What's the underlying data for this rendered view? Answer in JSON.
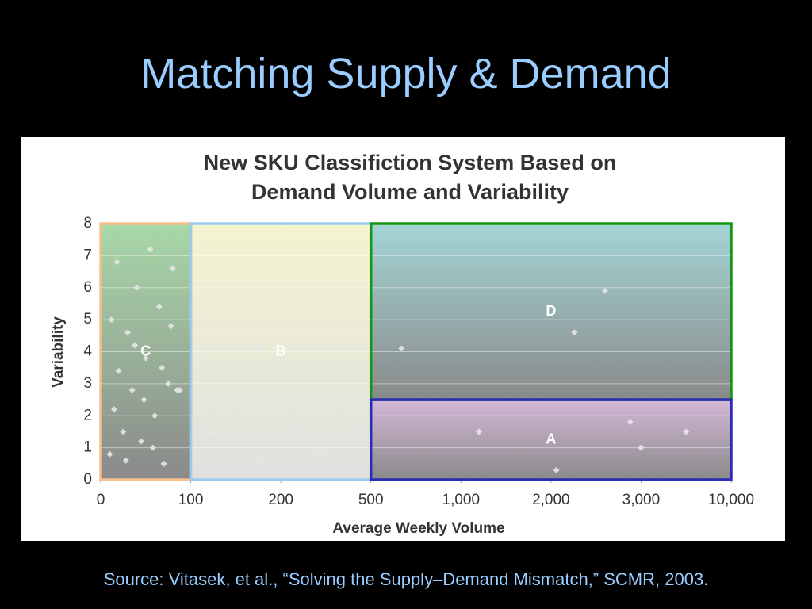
{
  "slide_title": "Matching Supply & Demand",
  "source": "Source: Vitasek, et al., “Solving the Supply–Demand Mismatch,” SCMR,  2003.",
  "chart_data": {
    "type": "scatter",
    "title": [
      "New SKU Classifiction System Based on",
      "Demand Volume and Variability"
    ],
    "x_label": "Average Weekly Volume",
    "y_label": "Variability",
    "xticks": [
      0,
      100,
      200,
      500,
      {
        "value": 1000,
        "label": "1,000"
      },
      {
        "value": 2000,
        "label": "2,000"
      },
      {
        "value": 3000,
        "label": "3,000"
      },
      {
        "value": 10000,
        "label": "10,000"
      }
    ],
    "ylim": [
      0,
      8
    ],
    "yticks": [
      0,
      1,
      2,
      3,
      4,
      5,
      6,
      7,
      8
    ],
    "grid": true,
    "regions": [
      {
        "name": "C",
        "xlim": [
          0,
          100
        ],
        "ylim": [
          0,
          8
        ],
        "color": "#f7bf8c",
        "fill": "#a8d8a8"
      },
      {
        "name": "B",
        "xlim": [
          100,
          500
        ],
        "ylim": [
          0,
          8
        ],
        "color": "#9ccbf2",
        "fill": "#f4f4d0"
      },
      {
        "name": "D",
        "xlim": [
          500,
          10000
        ],
        "ylim": [
          2.5,
          8
        ],
        "color": "#149614",
        "fill": "#a3d4d4"
      },
      {
        "name": "A",
        "xlim": [
          500,
          10000
        ],
        "ylim": [
          0,
          2.5
        ],
        "color": "#2b2bb8",
        "fill": "#d4b8d8"
      }
    ],
    "points": {
      "color": "#e6e6e6",
      "x": [
        10,
        15,
        20,
        25,
        30,
        35,
        40,
        45,
        50,
        55,
        60,
        65,
        70,
        75,
        80,
        85,
        12,
        18,
        28,
        38,
        48,
        58,
        68,
        78,
        88,
        113,
        121,
        170,
        175,
        175,
        270,
        330,
        350,
        470,
        670,
        2260,
        2600,
        1200,
        2060,
        2880,
        3000,
        6500
      ],
      "y": [
        0.8,
        2.2,
        3.4,
        1.5,
        4.6,
        2.8,
        6.0,
        1.2,
        3.8,
        7.2,
        2.0,
        5.4,
        0.5,
        3.0,
        6.6,
        2.8,
        5.0,
        6.8,
        0.6,
        4.2,
        2.5,
        1.0,
        3.5,
        4.8,
        2.8,
        2.6,
        1.5,
        2.1,
        4.1,
        0.5,
        1.6,
        0.8,
        2.1,
        1.6,
        4.1,
        4.6,
        5.9,
        1.5,
        0.3,
        1.8,
        1.0,
        1.5
      ]
    }
  }
}
